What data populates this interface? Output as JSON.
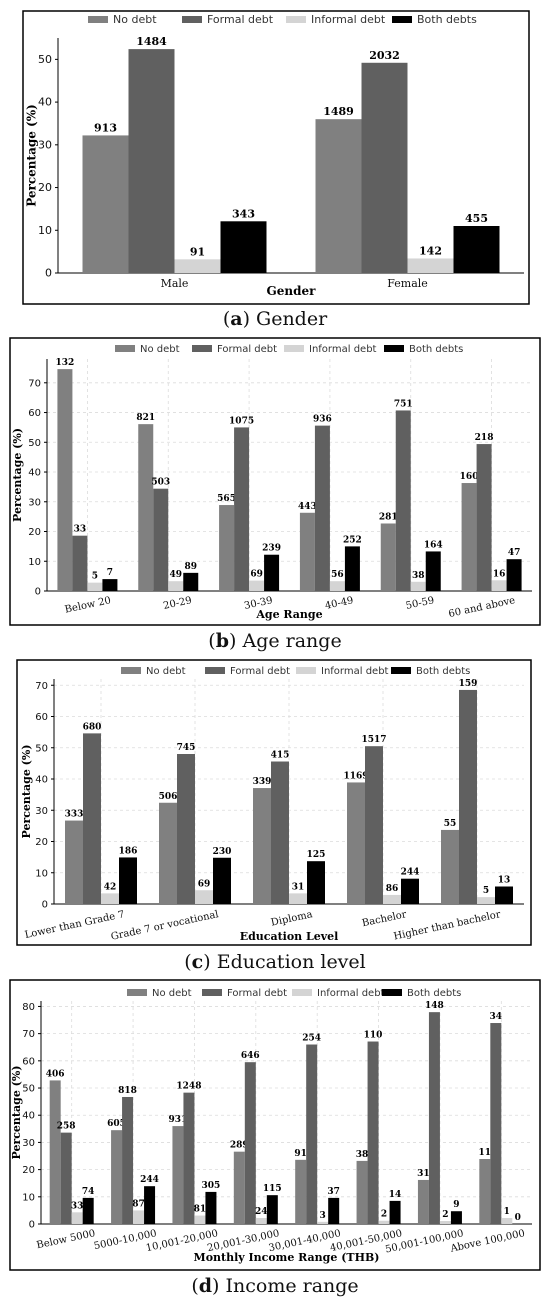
{
  "legend": [
    "No debt",
    "Formal debt",
    "Informal debt",
    "Both debts"
  ],
  "colors": {
    "no_debt": "#808080",
    "formal_debt": "#606060",
    "informal_debt": "#d4d4d4",
    "both_debts": "#000000",
    "frame": "#000000",
    "grid": "#dcdcdc"
  },
  "captions": [
    {
      "letter": "a",
      "text": " Gender"
    },
    {
      "letter": "b",
      "text": " Age range"
    },
    {
      "letter": "c",
      "text": " Education level"
    },
    {
      "letter": "d",
      "text": " Income range"
    }
  ],
  "chart_data": [
    {
      "type": "bar",
      "xlabel": "Gender",
      "ylabel": "Percentage (%)",
      "ylim": [
        0,
        55
      ],
      "yticks": [
        0,
        10,
        20,
        30,
        40,
        50
      ],
      "grid": "none",
      "legend_position": "top",
      "categories": [
        "Male",
        "Female"
      ],
      "series": [
        {
          "name": "No debt",
          "values": [
            32.2,
            36.0
          ],
          "labels": [
            "913",
            "1489"
          ]
        },
        {
          "name": "Formal debt",
          "values": [
            52.4,
            49.2
          ],
          "labels": [
            "1484",
            "2032"
          ]
        },
        {
          "name": "Informal debt",
          "values": [
            3.2,
            3.4
          ],
          "labels": [
            "91",
            "142"
          ]
        },
        {
          "name": "Both debts",
          "values": [
            12.1,
            11.0
          ],
          "labels": [
            "343",
            "455"
          ]
        }
      ]
    },
    {
      "type": "bar",
      "xlabel": "Age Range",
      "ylabel": "Percentage (%)",
      "ylim": [
        0,
        78
      ],
      "yticks": [
        0,
        10,
        20,
        30,
        40,
        50,
        60,
        70
      ],
      "grid": "dashed",
      "legend_position": "top",
      "categories": [
        "Below 20",
        "20-29",
        "30-39",
        "40-49",
        "50-59",
        "60 and above"
      ],
      "series": [
        {
          "name": "No debt",
          "values": [
            74.6,
            56.1,
            28.9,
            26.3,
            22.7,
            36.3
          ],
          "labels": [
            "132",
            "821",
            "565",
            "443",
            "281",
            "160"
          ]
        },
        {
          "name": "Formal debt",
          "values": [
            18.6,
            34.4,
            55.0,
            55.6,
            60.7,
            49.4
          ],
          "labels": [
            "33",
            "503",
            "1075",
            "936",
            "751",
            "218"
          ]
        },
        {
          "name": "Informal debt",
          "values": [
            2.8,
            3.3,
            3.5,
            3.3,
            3.1,
            3.6
          ],
          "labels": [
            "5",
            "49",
            "69",
            "56",
            "38",
            "16"
          ]
        },
        {
          "name": "Both debts",
          "values": [
            4.0,
            6.1,
            12.2,
            15.0,
            13.3,
            10.7
          ],
          "labels": [
            "7",
            "89",
            "239",
            "252",
            "164",
            "47"
          ]
        }
      ]
    },
    {
      "type": "bar",
      "xlabel": "Education Level",
      "ylabel": "Percentage (%)",
      "ylim": [
        0,
        72
      ],
      "yticks": [
        0,
        10,
        20,
        30,
        40,
        50,
        60,
        70
      ],
      "grid": "dashed",
      "legend_position": "top",
      "categories": [
        "Lower than Grade 7",
        "Grade 7 or vocational",
        "Diploma",
        "Bachelor",
        "Higher than bachelor"
      ],
      "series": [
        {
          "name": "No debt",
          "values": [
            26.7,
            32.4,
            37.1,
            38.9,
            23.7
          ],
          "labels": [
            "333",
            "506",
            "339",
            "1169",
            "55"
          ]
        },
        {
          "name": "Formal debt",
          "values": [
            54.6,
            48.0,
            45.6,
            50.5,
            68.5
          ],
          "labels": [
            "680",
            "745",
            "415",
            "1517",
            "159"
          ]
        },
        {
          "name": "Informal debt",
          "values": [
            3.4,
            4.4,
            3.4,
            2.9,
            2.2
          ],
          "labels": [
            "42",
            "69",
            "31",
            "86",
            "5"
          ]
        },
        {
          "name": "Both debts",
          "values": [
            14.9,
            14.8,
            13.7,
            8.1,
            5.6
          ],
          "labels": [
            "186",
            "230",
            "125",
            "244",
            "13"
          ]
        }
      ]
    },
    {
      "type": "bar",
      "xlabel": "Monthly Income Range (THB)",
      "ylabel": "Percentage (%)",
      "ylim": [
        0,
        82
      ],
      "yticks": [
        0,
        10,
        20,
        30,
        40,
        50,
        60,
        70,
        80
      ],
      "grid": "dashed",
      "legend_position": "top",
      "categories": [
        "Below 5000",
        "5000-10,000",
        "10,001-20,000",
        "20,001-30,000",
        "30,001-40,000",
        "40,001-50,000",
        "50,001-100,000",
        "Above 100,000"
      ],
      "series": [
        {
          "name": "No debt",
          "values": [
            52.8,
            34.5,
            36.0,
            26.6,
            23.6,
            23.2,
            16.2,
            23.9
          ],
          "labels": [
            "406",
            "605",
            "931",
            "289",
            "91",
            "38",
            "31",
            "11"
          ]
        },
        {
          "name": "Formal debt",
          "values": [
            33.6,
            46.7,
            48.3,
            59.5,
            66.0,
            67.1,
            77.9,
            73.9
          ],
          "labels": [
            "258",
            "818",
            "1248",
            "646",
            "254",
            "110",
            "148",
            "34"
          ]
        },
        {
          "name": "Informal debt",
          "values": [
            4.3,
            5.0,
            3.1,
            2.2,
            0.8,
            1.2,
            1.1,
            2.2
          ],
          "labels": [
            "33",
            "87",
            "81",
            "24",
            "3",
            "2",
            "2",
            "1"
          ]
        },
        {
          "name": "Both debts",
          "values": [
            9.6,
            13.9,
            11.8,
            10.6,
            9.6,
            8.5,
            4.7,
            0.0
          ],
          "labels": [
            "74",
            "244",
            "305",
            "115",
            "37",
            "14",
            "9",
            "0"
          ]
        }
      ]
    }
  ]
}
